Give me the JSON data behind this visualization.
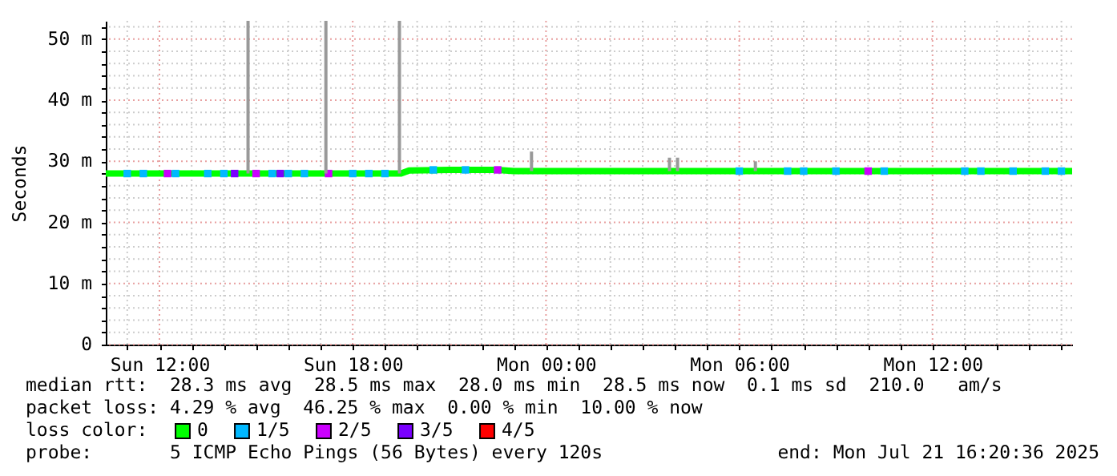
{
  "chart_data": {
    "type": "line",
    "ylabel": "Seconds",
    "legend_title": "loss color:",
    "legend": "bottom",
    "grid": true,
    "marker": "none",
    "line_style": "solid",
    "xlim": [
      "2025-07-20T10:20",
      "2025-07-21T16:20"
    ],
    "xticks": [
      {
        "value": "2025-07-20T11:00",
        "label": null
      },
      {
        "value": "2025-07-20T12:00",
        "label": "Sun 12:00"
      },
      {
        "value": "2025-07-20T13:00",
        "label": null
      },
      {
        "value": "2025-07-20T14:00",
        "label": null
      },
      {
        "value": "2025-07-20T15:00",
        "label": null
      },
      {
        "value": "2025-07-20T16:00",
        "label": null
      },
      {
        "value": "2025-07-20T17:00",
        "label": null
      },
      {
        "value": "2025-07-20T18:00",
        "label": "Sun 18:00"
      },
      {
        "value": "2025-07-20T19:00",
        "label": null
      },
      {
        "value": "2025-07-20T20:00",
        "label": null
      },
      {
        "value": "2025-07-20T21:00",
        "label": null
      },
      {
        "value": "2025-07-20T22:00",
        "label": null
      },
      {
        "value": "2025-07-20T23:00",
        "label": null
      },
      {
        "value": "2025-07-21T00:00",
        "label": "Mon 00:00"
      },
      {
        "value": "2025-07-21T01:00",
        "label": null
      },
      {
        "value": "2025-07-21T02:00",
        "label": null
      },
      {
        "value": "2025-07-21T03:00",
        "label": null
      },
      {
        "value": "2025-07-21T04:00",
        "label": null
      },
      {
        "value": "2025-07-21T05:00",
        "label": null
      },
      {
        "value": "2025-07-21T06:00",
        "label": "Mon 06:00"
      },
      {
        "value": "2025-07-21T07:00",
        "label": null
      },
      {
        "value": "2025-07-21T08:00",
        "label": null
      },
      {
        "value": "2025-07-21T09:00",
        "label": null
      },
      {
        "value": "2025-07-21T10:00",
        "label": null
      },
      {
        "value": "2025-07-21T11:00",
        "label": null
      },
      {
        "value": "2025-07-21T12:00",
        "label": "Mon 12:00"
      },
      {
        "value": "2025-07-21T13:00",
        "label": null
      },
      {
        "value": "2025-07-21T14:00",
        "label": null
      },
      {
        "value": "2025-07-21T15:00",
        "label": null
      },
      {
        "value": "2025-07-21T16:00",
        "label": null
      }
    ],
    "ylim": [
      0,
      53
    ],
    "yticks": [
      {
        "value": 0,
        "label": "0"
      },
      {
        "value": 2,
        "label": null
      },
      {
        "value": 4,
        "label": null
      },
      {
        "value": 6,
        "label": null
      },
      {
        "value": 8,
        "label": null
      },
      {
        "value": 10,
        "label": "10 m"
      },
      {
        "value": 12,
        "label": null
      },
      {
        "value": 14,
        "label": null
      },
      {
        "value": 16,
        "label": null
      },
      {
        "value": 18,
        "label": null
      },
      {
        "value": 20,
        "label": "20 m"
      },
      {
        "value": 22,
        "label": null
      },
      {
        "value": 24,
        "label": null
      },
      {
        "value": 26,
        "label": null
      },
      {
        "value": 28,
        "label": null
      },
      {
        "value": 30,
        "label": "30 m"
      },
      {
        "value": 32,
        "label": null
      },
      {
        "value": 34,
        "label": null
      },
      {
        "value": 36,
        "label": null
      },
      {
        "value": 38,
        "label": null
      },
      {
        "value": 40,
        "label": "40 m"
      },
      {
        "value": 42,
        "label": null
      },
      {
        "value": 44,
        "label": null
      },
      {
        "value": 46,
        "label": null
      },
      {
        "value": 48,
        "label": null
      },
      {
        "value": 50,
        "label": "50 m"
      },
      {
        "value": 52,
        "label": null
      }
    ],
    "series": [
      {
        "type": "bar",
        "color": "#999999",
        "x": [
          "2025-07-20T14:45",
          "2025-07-20T17:10",
          "2025-07-20T19:27",
          "2025-07-20T23:33",
          "2025-07-21T03:50",
          "2025-07-21T04:05",
          "2025-07-21T06:30"
        ],
        "base": [
          28.0,
          28.0,
          28.0,
          28.4,
          28.4,
          28.4,
          28.4
        ],
        "values": [
          25,
          25,
          25,
          3.2,
          2.2,
          2.2,
          1.6
        ]
      },
      {
        "name": "0",
        "color": "#00ff00",
        "x": [
          "2025-07-20T10:20",
          "2025-07-20T12:00",
          "2025-07-20T14:00",
          "2025-07-20T16:00",
          "2025-07-20T18:00",
          "2025-07-20T19:30",
          "2025-07-20T19:45",
          "2025-07-20T21:00",
          "2025-07-20T22:30",
          "2025-07-20T23:00",
          "2025-07-21T02:00",
          "2025-07-21T06:00",
          "2025-07-21T09:00",
          "2025-07-21T12:00",
          "2025-07-21T14:00",
          "2025-07-21T16:20"
        ],
        "values": [
          28.0,
          28.0,
          28.0,
          28.0,
          28.0,
          28.0,
          28.5,
          28.6,
          28.6,
          28.4,
          28.4,
          28.4,
          28.4,
          28.4,
          28.4,
          28.4
        ]
      },
      {
        "name": "1/5",
        "type": "scatter",
        "marker": "square",
        "color": "#00b8ff",
        "x": [
          "2025-07-20T11:00",
          "2025-07-20T11:30",
          "2025-07-20T12:30",
          "2025-07-20T13:30",
          "2025-07-20T14:00",
          "2025-07-20T15:30",
          "2025-07-20T16:00",
          "2025-07-20T16:30",
          "2025-07-20T18:00",
          "2025-07-20T18:30",
          "2025-07-20T19:00",
          "2025-07-20T20:30",
          "2025-07-20T21:30",
          "2025-07-21T06:00",
          "2025-07-21T07:30",
          "2025-07-21T08:00",
          "2025-07-21T09:00",
          "2025-07-21T10:30",
          "2025-07-21T13:00",
          "2025-07-21T13:30",
          "2025-07-21T14:30",
          "2025-07-21T15:30",
          "2025-07-21T16:00"
        ],
        "values": [
          28.0,
          28.0,
          28.0,
          28.0,
          28.0,
          28.0,
          28.0,
          28.0,
          28.0,
          28.0,
          28.0,
          28.6,
          28.6,
          28.4,
          28.4,
          28.4,
          28.4,
          28.4,
          28.4,
          28.4,
          28.4,
          28.4,
          28.4
        ]
      },
      {
        "name": "2/5",
        "type": "scatter",
        "marker": "square",
        "color": "#cc00ff",
        "x": [
          "2025-07-20T12:15",
          "2025-07-20T15:00",
          "2025-07-20T17:15",
          "2025-07-20T22:30",
          "2025-07-21T10:00"
        ],
        "values": [
          28.0,
          28.0,
          28.0,
          28.6,
          28.4
        ]
      },
      {
        "name": "3/5",
        "type": "scatter",
        "marker": "square",
        "color": "#7a00ff",
        "x": [
          "2025-07-20T14:20",
          "2025-07-20T15:45"
        ],
        "values": [
          28.0,
          28.0
        ]
      },
      {
        "name": "4/5",
        "type": "scatter",
        "marker": "square",
        "color": "#ff0000"
      }
    ],
    "annotations": [
      "median rtt:  28.3 ms avg  28.5 ms max  28.0 ms min  28.5 ms now  0.1 ms sd  210.0   am/s",
      "packet loss: 4.29 % avg  46.25 % max  0.00 % min  10.00 % now",
      "probe:       5 ICMP Echo Pings (56 Bytes) every 120s",
      "end: Mon Jul 21 16:20:36 2025"
    ]
  }
}
